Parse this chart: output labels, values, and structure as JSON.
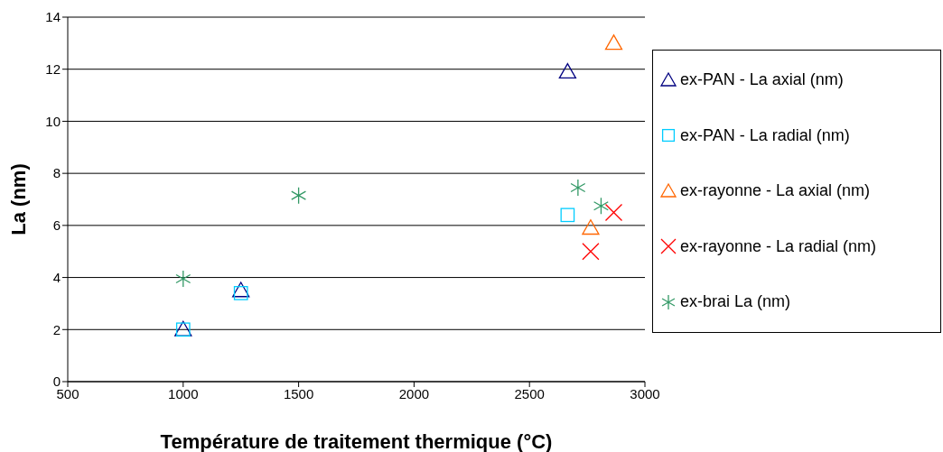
{
  "chart_data": {
    "type": "scatter",
    "xlabel": "Température de traitement thermique (°C)",
    "ylabel": "La (nm)",
    "xlim": [
      500,
      3000
    ],
    "xticks": [
      500,
      1000,
      1500,
      2000,
      2500,
      3000
    ],
    "ylim": [
      0,
      14
    ],
    "yticks": [
      0,
      2,
      4,
      6,
      8,
      10,
      12,
      14
    ],
    "grid": "y",
    "legend": "right",
    "series": [
      {
        "name": "ex-PAN - La axial  (nm)",
        "color": "#000080",
        "marker": "triangle",
        "x": [
          1000,
          1250,
          2665
        ],
        "values": [
          2.0,
          3.5,
          11.9
        ]
      },
      {
        "name": "ex-PAN - La radial (nm)",
        "color": "#00ccff",
        "marker": "square",
        "x": [
          1000,
          1250,
          2665
        ],
        "values": [
          2.0,
          3.4,
          6.4
        ]
      },
      {
        "name": "ex-rayonne - La axial (nm)",
        "color": "#ff6600",
        "marker": "triangle",
        "x": [
          2765,
          2865
        ],
        "values": [
          5.9,
          13.0
        ]
      },
      {
        "name": "ex-rayonne - La radial (nm)",
        "color": "#ff0000",
        "marker": "cross",
        "x": [
          2765,
          2865
        ],
        "values": [
          5.0,
          6.5
        ]
      },
      {
        "name": "ex-brai La (nm)",
        "color": "#339966",
        "x": [
          1000,
          1500,
          2710,
          2810
        ],
        "values": [
          3.95,
          7.15,
          7.45,
          6.75
        ]
      }
    ]
  }
}
